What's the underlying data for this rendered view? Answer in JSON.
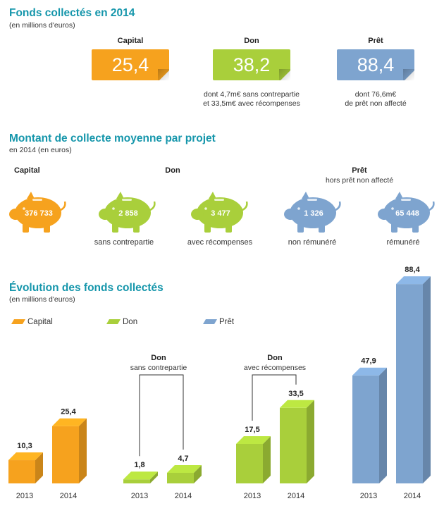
{
  "section1": {
    "title": "Fonds collectés en 2014",
    "subtitle": "(en millions d'euros)",
    "cards": [
      {
        "label": "Capital",
        "value": "25,4",
        "note1": "",
        "note2": "",
        "color": "#f6a21e"
      },
      {
        "label": "Don",
        "value": "38,2",
        "note1": "dont 4,7m€ sans contrepartie",
        "note2": "et 33,5m€ avec récompenses",
        "color": "#a9cf3b"
      },
      {
        "label": "Prêt",
        "value": "88,4",
        "note1": "dont 76,6m€",
        "note2": "de prêt non affecté",
        "color": "#7ea4cf"
      }
    ]
  },
  "section2": {
    "title": "Montant de collecte moyenne par projet",
    "subtitle": "en 2014 (en euros)",
    "group_labels": {
      "capital": "Capital",
      "don": "Don",
      "pret": "Prêt",
      "pret_sub": "hors prêt non affecté"
    },
    "pigs": [
      {
        "value": "376 733",
        "label": "",
        "color": "#f6a21e"
      },
      {
        "value": "2 858",
        "label": "sans contrepartie",
        "color": "#a9cf3b"
      },
      {
        "value": "3 477",
        "label": "avec récompenses",
        "color": "#a9cf3b"
      },
      {
        "value": "1 326",
        "label": "non rémunéré",
        "color": "#7ea4cf"
      },
      {
        "value": "65 448",
        "label": "rémunéré",
        "color": "#7ea4cf"
      }
    ]
  },
  "section3": {
    "title": "Évolution des fonds collectés",
    "subtitle": "(en millions d'euros)",
    "legend": [
      {
        "name": "Capital",
        "color": "#f6a21e"
      },
      {
        "name": "Don",
        "color": "#a9cf3b"
      },
      {
        "name": "Prêt",
        "color": "#7ea4cf"
      }
    ],
    "group_labels": [
      {
        "title": "Don",
        "subtitle": "sans contrepartie"
      },
      {
        "title": "Don",
        "subtitle": "avec récompenses"
      }
    ]
  },
  "chart_data": {
    "type": "bar",
    "title": "Évolution des fonds collectés",
    "ylabel": "(en millions d'euros)",
    "categories": [
      "2013",
      "2014"
    ],
    "series": [
      {
        "name": "Capital",
        "values": [
          10.3,
          25.4
        ],
        "labels": [
          "10,3",
          "25,4"
        ],
        "color": "#f6a21e"
      },
      {
        "name": "Don sans contrepartie",
        "values": [
          1.8,
          4.7
        ],
        "labels": [
          "1,8",
          "4,7"
        ],
        "color": "#a9cf3b"
      },
      {
        "name": "Don avec récompenses",
        "values": [
          17.5,
          33.5
        ],
        "labels": [
          "17,5",
          "33,5"
        ],
        "color": "#a9cf3b"
      },
      {
        "name": "Prêt",
        "values": [
          47.9,
          88.4
        ],
        "labels": [
          "47,9",
          "88,4"
        ],
        "color": "#7ea4cf"
      }
    ]
  }
}
